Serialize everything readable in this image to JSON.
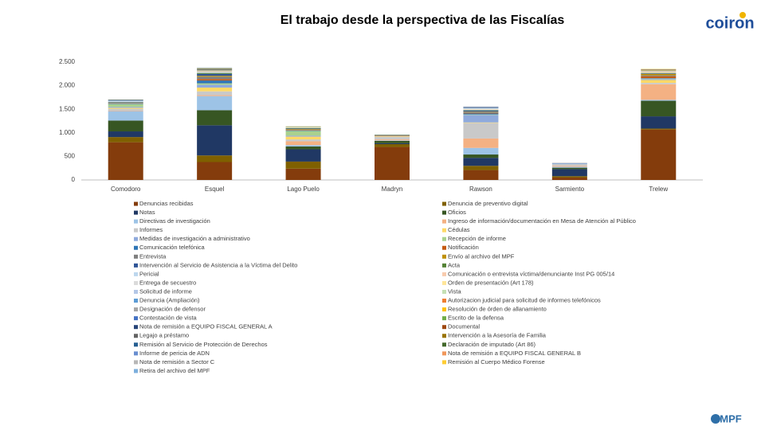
{
  "chart_data": {
    "type": "stacked_bar",
    "title": "El trabajo desde la perspectiva de las Fiscalías",
    "logo": "coiron",
    "footer": "MPF",
    "categories": [
      "Comodoro",
      "Esquel",
      "Lago Puelo",
      "Madryn",
      "Rawson",
      "Sarmiento",
      "Trelew"
    ],
    "ylim": [
      0,
      2500
    ],
    "yticks": [
      0,
      500,
      {
        "value": 1000,
        "label": "1.000"
      },
      {
        "value": 1500,
        "label": "1.500"
      },
      {
        "value": 2000,
        "label": "2.000"
      },
      {
        "value": 2500,
        "label": "2.500"
      }
    ],
    "grid": false,
    "series": [
      {
        "name": "Denuncias recibidas",
        "color": "#843C0C",
        "values": [
          800,
          380,
          240,
          700,
          210,
          50,
          1070
        ]
      },
      {
        "name": "Denuncia de preventivo digital",
        "color": "#7F6000",
        "values": [
          110,
          140,
          150,
          60,
          90,
          30,
          20
        ]
      },
      {
        "name": "Notas",
        "color": "#203864",
        "values": [
          120,
          640,
          260,
          20,
          170,
          150,
          260
        ]
      },
      {
        "name": "Oficios",
        "color": "#375623",
        "values": [
          230,
          320,
          60,
          50,
          70,
          30,
          330
        ]
      },
      {
        "name": "Directivas de investigación",
        "color": "#9DC3E6",
        "values": [
          200,
          300,
          30,
          10,
          140,
          20,
          20
        ]
      },
      {
        "name": "Ingreso de información/documentación en Mesa de Atención al Público",
        "color": "#F4B183",
        "values": [
          10,
          20,
          80,
          20,
          200,
          20,
          330
        ]
      },
      {
        "name": "Informes",
        "color": "#C9C9C9",
        "values": [
          40,
          80,
          40,
          60,
          330,
          40,
          30
        ]
      },
      {
        "name": "Cédulas",
        "color": "#FFD966",
        "values": [
          20,
          80,
          60,
          10,
          10,
          0,
          60
        ]
      },
      {
        "name": "Medidas de investigación a administrativo",
        "color": "#8FAADC",
        "values": [
          20,
          60,
          20,
          0,
          160,
          10,
          20
        ]
      },
      {
        "name": "Recepción de informe",
        "color": "#A9D18E",
        "values": [
          60,
          30,
          100,
          0,
          10,
          0,
          10
        ]
      },
      {
        "name": "Comunicación telefónica",
        "color": "#2E75B6",
        "values": [
          10,
          60,
          10,
          0,
          20,
          5,
          10
        ]
      },
      {
        "name": "Notificación",
        "color": "#C55A11",
        "values": [
          5,
          30,
          10,
          5,
          10,
          0,
          40
        ]
      },
      {
        "name": "Entrevista",
        "color": "#7F7F7F",
        "values": [
          10,
          50,
          10,
          10,
          20,
          5,
          20
        ]
      },
      {
        "name": "Envío al archivo del MPF",
        "color": "#BF9000",
        "values": [
          5,
          20,
          10,
          5,
          10,
          0,
          30
        ]
      },
      {
        "name": "Intervención al Servicio de Asistencia a la Víctima del Delito",
        "color": "#2F5597",
        "values": [
          10,
          40,
          10,
          5,
          20,
          0,
          10
        ]
      },
      {
        "name": "Acta",
        "color": "#548235",
        "values": [
          5,
          20,
          10,
          5,
          10,
          0,
          10
        ]
      },
      {
        "name": "Pericial",
        "color": "#BDD7EE",
        "values": [
          5,
          10,
          5,
          0,
          10,
          0,
          5
        ]
      },
      {
        "name": "Comunicación o entrevista víctima/denunciante Inst PG 005/14",
        "color": "#F8CBAD",
        "values": [
          0,
          5,
          5,
          0,
          10,
          0,
          10
        ]
      },
      {
        "name": "Entrega de secuestro",
        "color": "#DBDBDB",
        "values": [
          5,
          5,
          0,
          0,
          5,
          0,
          5
        ]
      },
      {
        "name": "Orden de presentación (Art 178)",
        "color": "#FFE699",
        "values": [
          0,
          5,
          5,
          0,
          0,
          0,
          10
        ]
      },
      {
        "name": "Solicitud de informe",
        "color": "#B4C7E7",
        "values": [
          5,
          5,
          0,
          0,
          10,
          0,
          5
        ]
      },
      {
        "name": "Vista",
        "color": "#C5E0B4",
        "values": [
          5,
          5,
          5,
          0,
          5,
          0,
          0
        ]
      },
      {
        "name": "Denuncia (Ampliación)",
        "color": "#5B9BD5",
        "values": [
          5,
          5,
          0,
          0,
          5,
          0,
          5
        ]
      },
      {
        "name": "Autorizacion judicial para solicitud de informes telefónicos",
        "color": "#ED7D31",
        "values": [
          0,
          5,
          0,
          0,
          0,
          0,
          5
        ]
      },
      {
        "name": "Designación de defensor",
        "color": "#A5A5A5",
        "values": [
          5,
          5,
          5,
          0,
          5,
          0,
          5
        ]
      },
      {
        "name": "Resolución de órden de allanamiento",
        "color": "#FFC000",
        "values": [
          0,
          5,
          0,
          0,
          0,
          0,
          5
        ]
      },
      {
        "name": "Contestación de vista",
        "color": "#4472C4",
        "values": [
          5,
          5,
          0,
          0,
          5,
          0,
          0
        ]
      },
      {
        "name": "Escrito de la defensa",
        "color": "#70AD47",
        "values": [
          0,
          5,
          5,
          0,
          0,
          0,
          5
        ]
      },
      {
        "name": "Nota de remisión a EQUIPO FISCAL GENERAL A",
        "color": "#264478",
        "values": [
          5,
          5,
          0,
          0,
          5,
          0,
          0
        ]
      },
      {
        "name": "Documental",
        "color": "#9E480E",
        "values": [
          0,
          5,
          0,
          0,
          0,
          0,
          5
        ]
      },
      {
        "name": "Legajo a préstamo",
        "color": "#636363",
        "values": [
          5,
          5,
          0,
          0,
          5,
          0,
          5
        ]
      },
      {
        "name": "Intervención a la Asesoría de Familia",
        "color": "#997300",
        "values": [
          0,
          5,
          5,
          0,
          0,
          0,
          0
        ]
      },
      {
        "name": "Remisión al Servicio de Protección de Derechos",
        "color": "#255E91",
        "values": [
          0,
          5,
          0,
          0,
          5,
          0,
          0
        ]
      },
      {
        "name": "Declaración de imputado (Art 86)",
        "color": "#43682B",
        "values": [
          5,
          5,
          0,
          0,
          0,
          0,
          5
        ]
      },
      {
        "name": "Informe de pericia de ADN",
        "color": "#698ED0",
        "values": [
          0,
          5,
          0,
          0,
          5,
          0,
          0
        ]
      },
      {
        "name": "Nota de remisión a EQUIPO FISCAL GENERAL B",
        "color": "#F1975A",
        "values": [
          0,
          0,
          0,
          0,
          0,
          0,
          5
        ]
      },
      {
        "name": "Nota de remisión a Sector C",
        "color": "#B7B7B7",
        "values": [
          0,
          5,
          0,
          0,
          0,
          0,
          0
        ]
      },
      {
        "name": "Remisión al Cuerpo Médico Forense",
        "color": "#FFCD33",
        "values": [
          0,
          5,
          0,
          0,
          0,
          0,
          5
        ]
      },
      {
        "name": "Retira del archivo del MPF",
        "color": "#7CAFDD",
        "values": [
          0,
          5,
          0,
          0,
          0,
          0,
          0
        ]
      }
    ]
  }
}
